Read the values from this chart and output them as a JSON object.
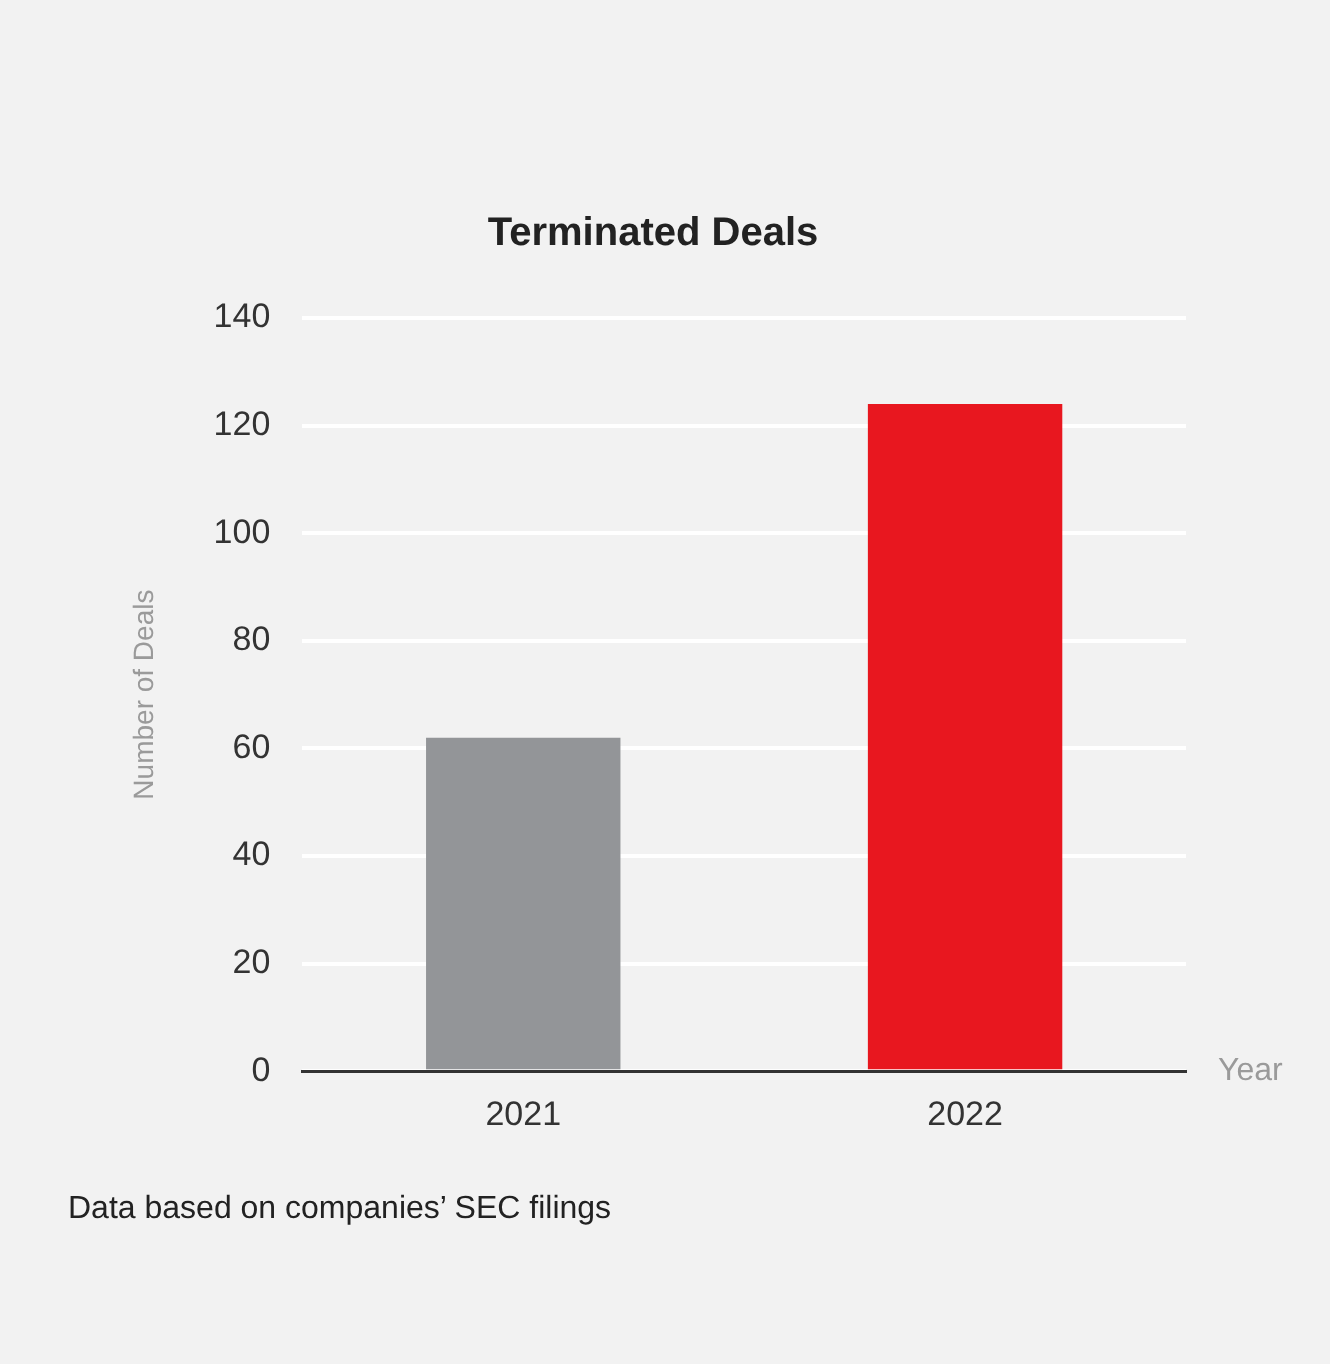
{
  "chart_data": {
    "type": "bar",
    "title": "Terminated Deals",
    "xlabel": "Year",
    "ylabel": "Number of Deals",
    "categories": [
      "2021",
      "2022"
    ],
    "values": [
      62,
      124
    ],
    "colors": [
      "#939598",
      "#e8171f"
    ],
    "ylim": [
      0,
      140
    ],
    "yticks": [
      0,
      20,
      40,
      60,
      80,
      100,
      120,
      140
    ],
    "grid": "y",
    "annotations": [
      "Data based on companies’ SEC filings"
    ]
  }
}
